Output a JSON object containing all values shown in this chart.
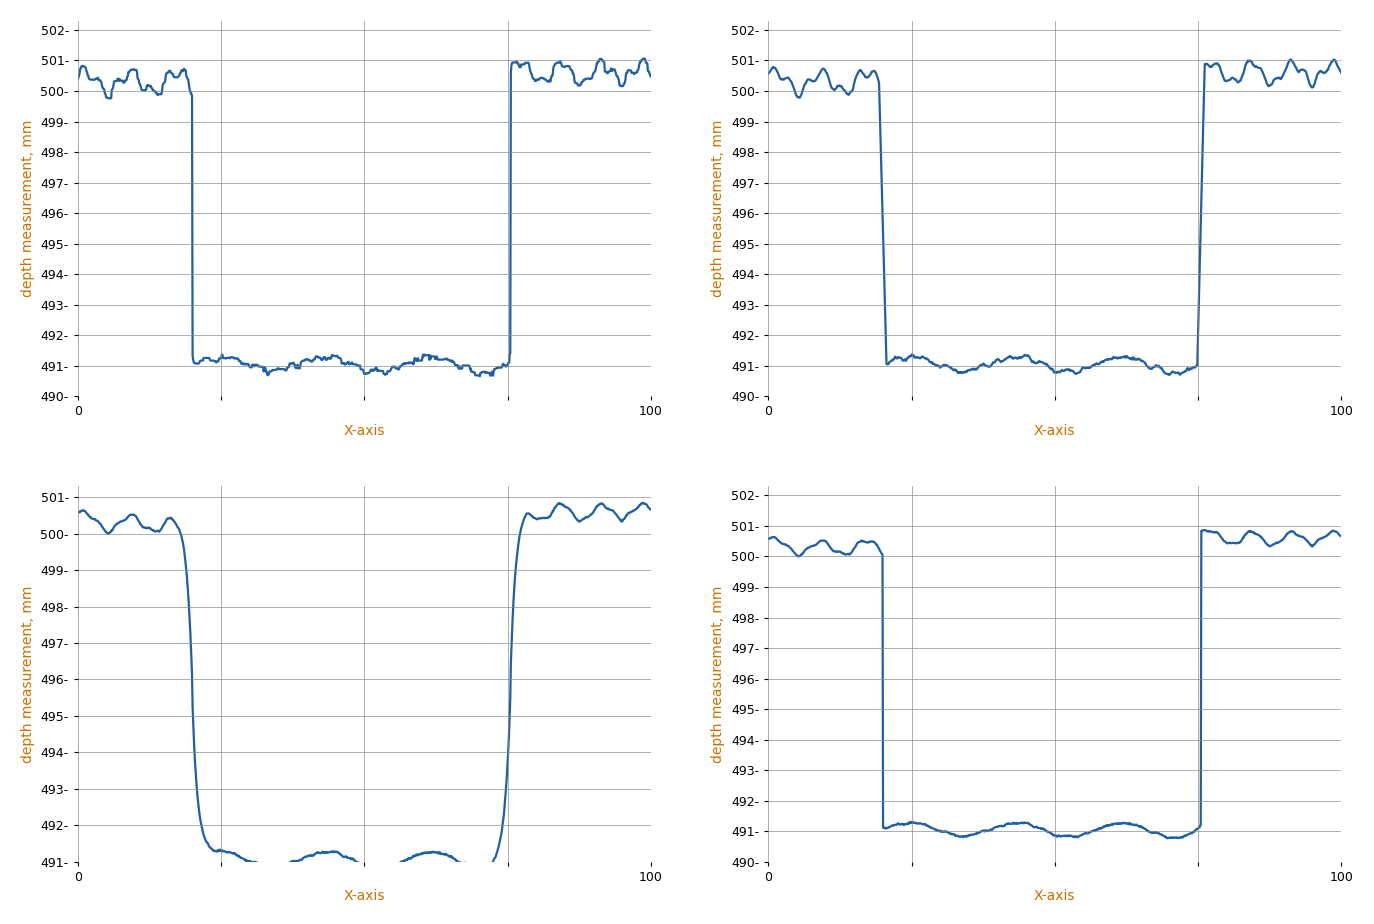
{
  "line_color": "#2060A0",
  "line_width": 1.6,
  "background_color": "#ffffff",
  "xlabel": "X-axis",
  "ylabel": "depth measurement, mm",
  "axis_label_color": "#C87000",
  "tick_label_color": "#000000",
  "grid_color": "#888888",
  "grid_linewidth": 0.6,
  "xlim": [
    0,
    100
  ],
  "plots": [
    {
      "ylim": [
        490.0,
        502.3
      ],
      "yticks": [
        490,
        491,
        492,
        493,
        494,
        495,
        496,
        497,
        498,
        499,
        500,
        501,
        502
      ],
      "xticks": [
        0,
        25,
        50,
        75,
        100
      ]
    },
    {
      "ylim": [
        490.0,
        502.3
      ],
      "yticks": [
        490,
        491,
        492,
        493,
        494,
        495,
        496,
        497,
        498,
        499,
        500,
        501,
        502
      ],
      "xticks": [
        0,
        25,
        50,
        75,
        100
      ]
    },
    {
      "ylim": [
        491.0,
        501.3
      ],
      "yticks": [
        491,
        492,
        493,
        494,
        495,
        496,
        497,
        498,
        499,
        500,
        501
      ],
      "xticks": [
        0,
        25,
        50,
        75,
        100
      ]
    },
    {
      "ylim": [
        490.0,
        502.3
      ],
      "yticks": [
        490,
        491,
        492,
        493,
        494,
        495,
        496,
        497,
        498,
        499,
        500,
        501,
        502
      ],
      "xticks": [
        0,
        25,
        50,
        75,
        100
      ]
    }
  ]
}
